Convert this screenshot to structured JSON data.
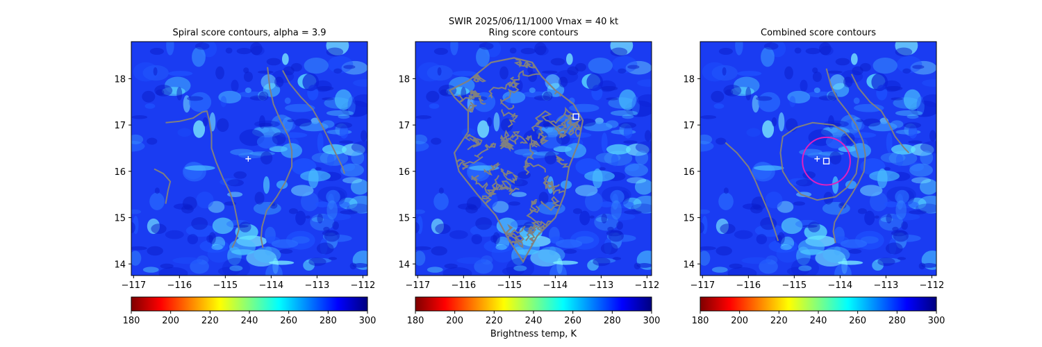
{
  "suptitle_line1": "SWIR  2025/06/11/1000    Vmax = 40 kt",
  "colorbar_label": "Brightness temp, K",
  "colormap": [
    "#7f0000",
    "#ff0000",
    "#ff8000",
    "#ffff00",
    "#80ff80",
    "#00ffff",
    "#0080ff",
    "#0000ff",
    "#00007f"
  ],
  "contour_color": "#808080",
  "marker_color": "#ffffff",
  "circle_color": "#e020c0",
  "chart_data": [
    {
      "type": "heatmap",
      "title": "Spiral score contours, alpha =  3.9",
      "xlim": [
        -117.05,
        -111.9
      ],
      "ylim": [
        13.75,
        18.8
      ],
      "xticks": [
        -117,
        -116,
        -115,
        -114,
        -113,
        -112
      ],
      "yticks": [
        14,
        15,
        16,
        17,
        18
      ],
      "clim": [
        180,
        300
      ],
      "cticks": [
        180,
        200,
        220,
        240,
        260,
        280,
        300
      ],
      "grid": false,
      "center_plus": [
        -114.5,
        16.27
      ],
      "contours": [
        [
          [
            -116.3,
            17.05
          ],
          [
            -116.0,
            17.08
          ],
          [
            -115.7,
            17.15
          ],
          [
            -115.5,
            17.28
          ],
          [
            -115.4,
            17.3
          ],
          [
            -115.35,
            17.1
          ],
          [
            -115.3,
            16.8
          ],
          [
            -115.3,
            16.5
          ],
          [
            -115.2,
            16.2
          ],
          [
            -115.05,
            15.85
          ],
          [
            -114.9,
            15.55
          ],
          [
            -114.8,
            15.25
          ],
          [
            -114.75,
            15.0
          ],
          [
            -114.7,
            14.75
          ],
          [
            -114.78,
            14.5
          ],
          [
            -114.85,
            14.35
          ]
        ],
        [
          [
            -116.55,
            16.05
          ],
          [
            -116.35,
            15.95
          ],
          [
            -116.2,
            15.78
          ],
          [
            -116.25,
            15.58
          ],
          [
            -116.3,
            15.3
          ]
        ],
        [
          [
            -114.08,
            18.25
          ],
          [
            -114.03,
            17.8
          ],
          [
            -113.95,
            17.45
          ],
          [
            -113.8,
            17.1
          ],
          [
            -113.62,
            16.75
          ],
          [
            -113.55,
            16.45
          ],
          [
            -113.55,
            16.1
          ],
          [
            -113.7,
            15.75
          ],
          [
            -113.88,
            15.45
          ],
          [
            -114.1,
            15.15
          ],
          [
            -114.2,
            14.8
          ],
          [
            -114.22,
            14.55
          ],
          [
            -114.18,
            14.35
          ]
        ],
        [
          [
            -113.75,
            18.18
          ],
          [
            -113.6,
            17.9
          ],
          [
            -113.35,
            17.6
          ],
          [
            -113.1,
            17.35
          ],
          [
            -112.9,
            17.0
          ],
          [
            -112.75,
            16.7
          ],
          [
            -112.6,
            16.4
          ],
          [
            -112.45,
            16.1
          ],
          [
            -112.4,
            15.95
          ]
        ]
      ]
    },
    {
      "type": "heatmap",
      "title": "Ring score contours",
      "xlim": [
        -117.05,
        -111.9
      ],
      "ylim": [
        13.75,
        18.8
      ],
      "xticks": [
        -117,
        -116,
        -115,
        -114,
        -113,
        -112
      ],
      "yticks": [
        14,
        15,
        16,
        17,
        18
      ],
      "clim": [
        180,
        300
      ],
      "cticks": [
        180,
        200,
        220,
        240,
        260,
        280,
        300
      ],
      "grid": false,
      "square_marker": [
        -113.55,
        17.18
      ],
      "ring_region": [
        [
          -115.4,
          18.35
        ],
        [
          -114.9,
          18.45
        ],
        [
          -114.5,
          18.35
        ],
        [
          -114.3,
          18.05
        ],
        [
          -114.0,
          17.75
        ],
        [
          -113.6,
          17.45
        ],
        [
          -113.4,
          17.1
        ],
        [
          -113.5,
          16.6
        ],
        [
          -113.7,
          16.1
        ],
        [
          -113.8,
          15.5
        ],
        [
          -114.0,
          15.0
        ],
        [
          -114.4,
          14.6
        ],
        [
          -114.7,
          14.05
        ],
        [
          -115.0,
          14.5
        ],
        [
          -115.3,
          15.05
        ],
        [
          -115.7,
          15.5
        ],
        [
          -116.1,
          16.0
        ],
        [
          -116.2,
          16.4
        ],
        [
          -115.9,
          16.85
        ],
        [
          -115.9,
          17.3
        ],
        [
          -116.2,
          17.6
        ],
        [
          -116.3,
          17.75
        ],
        [
          -115.9,
          17.95
        ]
      ]
    },
    {
      "type": "heatmap",
      "title": "Combined score contours",
      "xlim": [
        -117.05,
        -111.9
      ],
      "ylim": [
        13.75,
        18.8
      ],
      "xticks": [
        -117,
        -116,
        -115,
        -114,
        -113,
        -112
      ],
      "yticks": [
        14,
        15,
        16,
        17,
        18
      ],
      "clim": [
        180,
        300
      ],
      "cticks": [
        180,
        200,
        220,
        240,
        260,
        280,
        300
      ],
      "grid": false,
      "center_plus": [
        -114.5,
        16.27
      ],
      "square_marker": [
        -114.3,
        16.22
      ],
      "circle": {
        "center": [
          -114.3,
          16.22
        ],
        "radius_x": 0.52
      },
      "contours": [
        [
          [
            -114.15,
            17.0
          ],
          [
            -114.6,
            17.05
          ],
          [
            -114.95,
            16.95
          ],
          [
            -115.25,
            16.75
          ],
          [
            -115.3,
            16.4
          ],
          [
            -115.25,
            16.0
          ],
          [
            -115.1,
            15.75
          ],
          [
            -114.85,
            15.5
          ],
          [
            -114.5,
            15.38
          ],
          [
            -114.1,
            15.45
          ],
          [
            -113.85,
            15.65
          ],
          [
            -113.65,
            15.95
          ],
          [
            -113.6,
            16.3
          ],
          [
            -113.68,
            16.6
          ],
          [
            -113.9,
            16.85
          ],
          [
            -114.15,
            17.0
          ]
        ],
        [
          [
            -116.5,
            16.62
          ],
          [
            -116.25,
            16.4
          ],
          [
            -116.0,
            16.1
          ],
          [
            -115.85,
            15.8
          ],
          [
            -115.7,
            15.45
          ],
          [
            -115.55,
            15.1
          ],
          [
            -115.45,
            14.8
          ],
          [
            -115.35,
            14.5
          ]
        ],
        [
          [
            -114.3,
            18.22
          ],
          [
            -114.2,
            17.85
          ],
          [
            -114.05,
            17.55
          ],
          [
            -113.85,
            17.3
          ],
          [
            -113.65,
            17.0
          ],
          [
            -113.5,
            16.65
          ],
          [
            -113.45,
            16.35
          ],
          [
            -113.48,
            16.0
          ],
          [
            -113.6,
            15.75
          ],
          [
            -113.75,
            15.5
          ],
          [
            -113.95,
            15.2
          ],
          [
            -114.12,
            14.9
          ],
          [
            -114.15,
            14.7
          ],
          [
            -114.1,
            14.45
          ]
        ],
        [
          [
            -113.75,
            18.1
          ],
          [
            -113.6,
            17.8
          ],
          [
            -113.35,
            17.5
          ],
          [
            -113.1,
            17.3
          ],
          [
            -112.95,
            17.05
          ],
          [
            -112.8,
            16.75
          ],
          [
            -112.6,
            16.5
          ],
          [
            -112.5,
            16.4
          ]
        ]
      ]
    }
  ]
}
